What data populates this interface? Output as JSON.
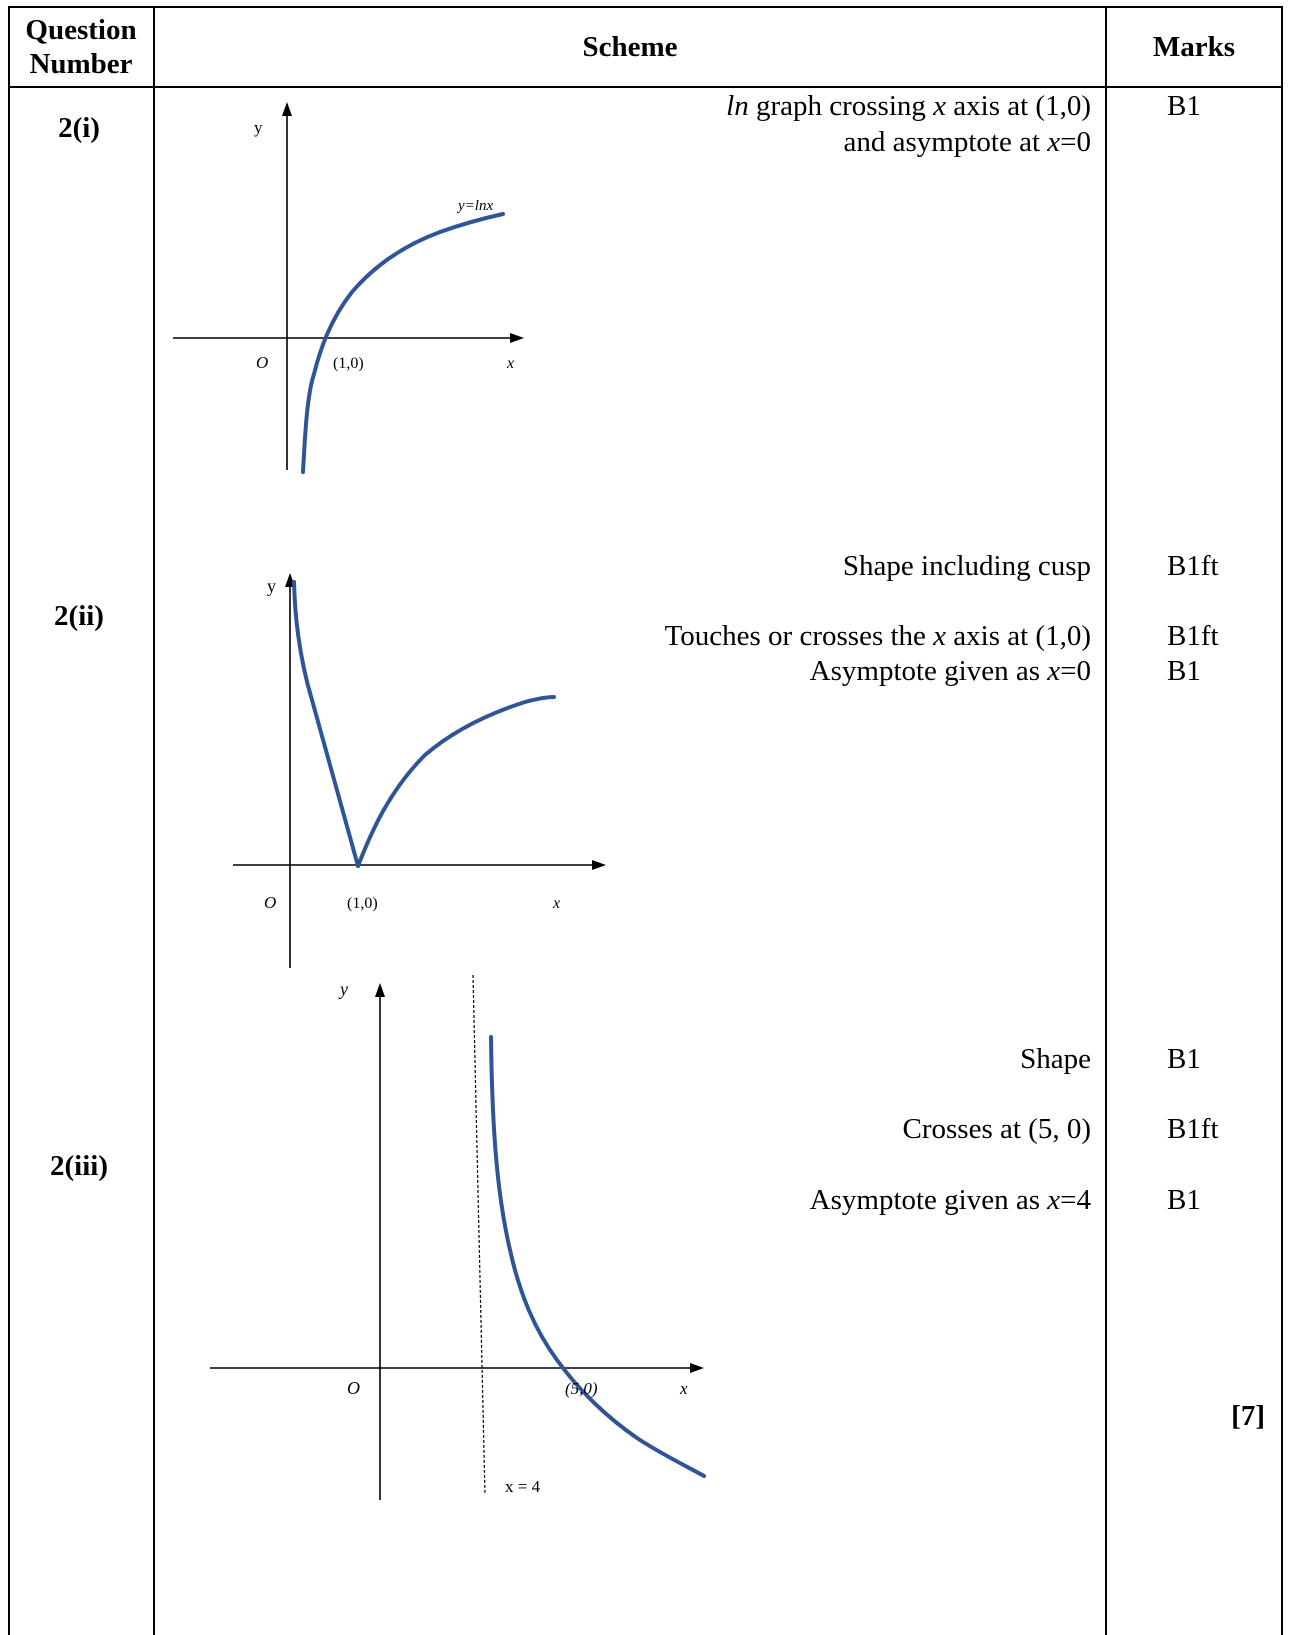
{
  "header": {
    "question_number": "Question Number",
    "scheme": "Scheme",
    "marks": "Marks"
  },
  "rows": [
    {
      "question": "2(i)",
      "graph": {
        "y_label": "y",
        "x_label": "x",
        "origin_label": "O",
        "point_label": "(1,0)",
        "curve_label": "y=lnx"
      },
      "scheme_lines": [
        "ln graph crossing x axis at (1,0)",
        "and asymptote at x=0"
      ],
      "marks": [
        "B1"
      ]
    },
    {
      "question": "2(ii)",
      "graph": {
        "y_label": "y",
        "x_label": "x",
        "origin_label": "O",
        "point_label": "(1,0)"
      },
      "scheme_lines": [
        "Shape including cusp",
        "Touches or crosses the x axis at (1,0)",
        "Asymptote given as x=0"
      ],
      "marks": [
        "B1ft",
        "B1ft",
        "B1"
      ]
    },
    {
      "question": "2(iii)",
      "graph": {
        "y_label": "y",
        "x_label": "x",
        "origin_label": "O",
        "point_label": "(5,0)",
        "asymptote_label": "x = 4"
      },
      "scheme_lines": [
        "Shape",
        "Crosses at (5, 0)",
        "Asymptote given as x=4"
      ],
      "marks": [
        "B1",
        "B1ft",
        "B1"
      ]
    }
  ],
  "total": "[7]",
  "colors": {
    "curve": "#2f5597",
    "rule": "#000000"
  }
}
